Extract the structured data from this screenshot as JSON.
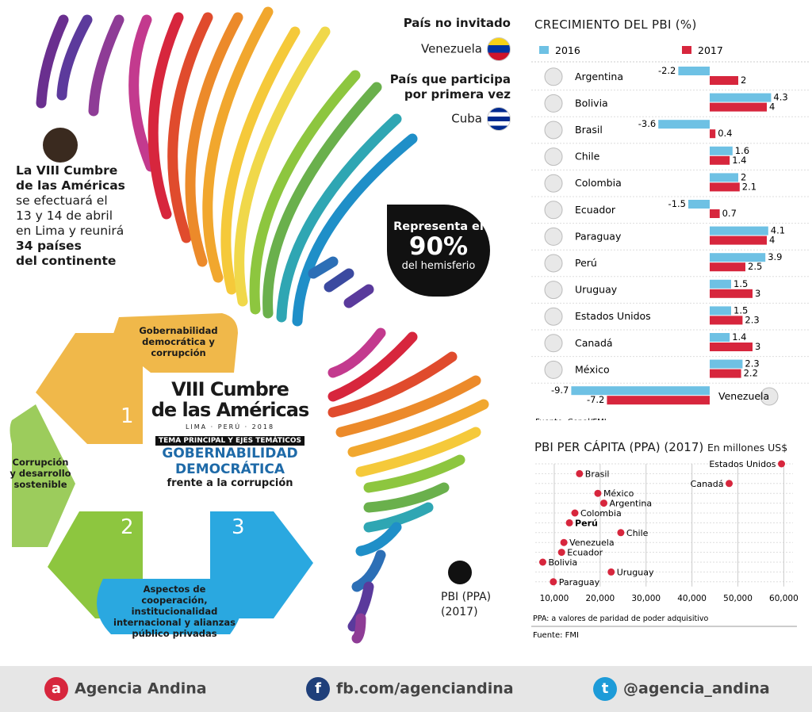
{
  "intro": {
    "l1": "La VIII Cumbre",
    "l2": "de las Américas",
    "l3": "se efectuará el",
    "l4": "13 y 14 de abril",
    "l5": "en Lima y reunirá",
    "l6": "34 países",
    "l7": "del continente"
  },
  "bubble": {
    "l1": "Representa el",
    "l2": "90%",
    "l3": "del hemisferio"
  },
  "notes": {
    "not_invited_title": "País no invitado",
    "not_invited": "Venezuela",
    "first_title_1": "País que participa",
    "first_title_2": "por primera vez",
    "first": "Cuba"
  },
  "summit": {
    "title1": "VIII Cumbre",
    "title2": "de las Américas",
    "place": "LIMA · PERÚ · 2018",
    "theme_label": "TEMA PRINCIPAL Y EJES TEMÁTICOS",
    "theme1": "GOBERNABILIDAD",
    "theme2": "DEMOCRÁTICA",
    "theme3": "frente a la corrupción",
    "axis1": "Gobernabilidad democrática y corrupción",
    "axis2": "Corrupción y desarrollo sostenible",
    "axis3": "Aspectos de cooperación, institucionalidad internacional y alianzas público privadas",
    "n1": "1",
    "n2": "2",
    "n3": "3"
  },
  "ppp_note": {
    "l1": "PBI (PPA)",
    "l2": "(2017)"
  },
  "chart_data": [
    {
      "type": "bar",
      "title": "CRECIMIENTO DEL PBI (%)",
      "orientation": "horizontal",
      "categories": [
        "Argentina",
        "Bolivia",
        "Brasil",
        "Chile",
        "Colombia",
        "Ecuador",
        "Paraguay",
        "Perú",
        "Uruguay",
        "Estados Unidos",
        "Canadá",
        "México",
        "Venezuela"
      ],
      "series": [
        {
          "name": "2016",
          "color": "#6ec1e4",
          "values": [
            -2.2,
            4.3,
            -3.6,
            1.6,
            2,
            -1.5,
            4.1,
            3.9,
            1.5,
            1.5,
            1.4,
            2.3,
            -9.7
          ]
        },
        {
          "name": "2017",
          "color": "#d7263d",
          "values": [
            2,
            4,
            0.4,
            1.4,
            2.1,
            0.7,
            4,
            2.5,
            3,
            2.3,
            3,
            2.2,
            -7.2
          ]
        }
      ],
      "source": "Fuente: Cepal/FMI"
    },
    {
      "type": "scatter",
      "title": "PBI PER CÁPITA (PPA) (2017)",
      "unit": "En millones US$",
      "xlim": [
        5000,
        62000
      ],
      "xticks": [
        "10,000",
        "20,000",
        "30,000",
        "40,000",
        "50,000",
        "60,000"
      ],
      "points": [
        {
          "label": "Estados Unidos",
          "x": 59500
        },
        {
          "label": "Brasil",
          "x": 15500
        },
        {
          "label": "Canadá",
          "x": 48100
        },
        {
          "label": "México",
          "x": 19500
        },
        {
          "label": "Argentina",
          "x": 20800
        },
        {
          "label": "Colombia",
          "x": 14500
        },
        {
          "label": "Perú",
          "x": 13300
        },
        {
          "label": "Chile",
          "x": 24500
        },
        {
          "label": "Venezuela",
          "x": 12100
        },
        {
          "label": "Ecuador",
          "x": 11600
        },
        {
          "label": "Bolivia",
          "x": 7500
        },
        {
          "label": "Uruguay",
          "x": 22400
        },
        {
          "label": "Paraguay",
          "x": 9800
        }
      ],
      "note": "PPA: a valores de paridad de poder adquisitivo",
      "source": "Fuente: FMI"
    }
  ],
  "footer": {
    "andina": "Agencia Andina",
    "fb": "fb.com/agenciandina",
    "tw": "@agencia_andina"
  }
}
